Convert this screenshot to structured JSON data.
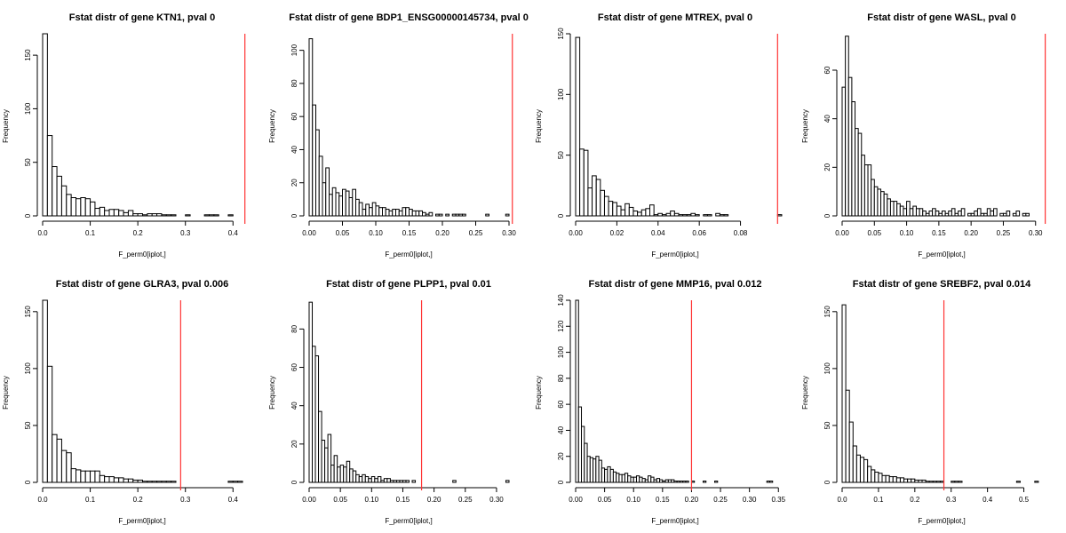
{
  "chart_data": [
    {
      "type": "bar",
      "title": "Fstat distr of gene KTN1, pval 0",
      "xlabel": "F_perm0[iplot,]",
      "ylabel": "Frequency",
      "bin_start": 0,
      "bin_width": 0.01,
      "values": [
        170,
        75,
        46,
        37,
        28,
        20,
        17,
        16,
        17,
        16,
        13,
        7,
        8,
        5,
        6,
        6,
        5,
        3,
        5,
        2,
        2,
        1,
        2,
        2,
        2,
        1,
        1,
        1,
        0,
        0,
        1,
        0,
        0,
        0,
        1,
        1,
        1,
        0,
        0,
        1
      ],
      "xlim": [
        0,
        0.42
      ],
      "ylim": [
        0,
        170
      ],
      "x_ticks": [
        0,
        0.1,
        0.2,
        0.3,
        0.4
      ],
      "x_tick_labels": [
        "0.0",
        "0.1",
        "0.2",
        "0.3",
        "0.4"
      ],
      "y_ticks": [
        0,
        50,
        100,
        150
      ],
      "y_tick_labels": [
        "0",
        "50",
        "100",
        "150"
      ],
      "observed": 0.425,
      "line_color": "#ff3333"
    },
    {
      "type": "bar",
      "title": "Fstat distr of gene BDP1_ENSG00000145734, pval 0",
      "xlabel": "F_perm0[iplot,]",
      "ylabel": "Frequency",
      "bin_start": 0,
      "bin_width": 0.005,
      "values": [
        107,
        67,
        52,
        36,
        20,
        29,
        13,
        17,
        14,
        12,
        16,
        15,
        11,
        16,
        10,
        8,
        4,
        7,
        5,
        8,
        6,
        5,
        5,
        4,
        3,
        4,
        4,
        3,
        5,
        5,
        4,
        3,
        3,
        3,
        2,
        1,
        2,
        0,
        1,
        1,
        0,
        1,
        0,
        1,
        1,
        1,
        1,
        0,
        0,
        0,
        0,
        0,
        0,
        1,
        0,
        0,
        0,
        0,
        0,
        1
      ],
      "xlim": [
        0,
        0.3
      ],
      "ylim": [
        0,
        110
      ],
      "x_ticks": [
        0,
        0.05,
        0.1,
        0.15,
        0.2,
        0.25,
        0.3
      ],
      "x_tick_labels": [
        "0.00",
        "0.05",
        "0.10",
        "0.15",
        "0.20",
        "0.25",
        "0.30"
      ],
      "y_ticks": [
        0,
        20,
        40,
        60,
        80,
        100
      ],
      "y_tick_labels": [
        "0",
        "20",
        "40",
        "60",
        "80",
        "100"
      ],
      "observed": 0.305,
      "line_color": "#ff3333"
    },
    {
      "type": "bar",
      "title": "Fstat distr of gene MTREX, pval 0",
      "xlabel": "F_perm0[iplot,]",
      "ylabel": "Frequency",
      "bin_start": 0,
      "bin_width": 0.002,
      "values": [
        147,
        55,
        54,
        23,
        33,
        30,
        21,
        16,
        12,
        11,
        8,
        5,
        10,
        7,
        4,
        3,
        5,
        6,
        9,
        1,
        2,
        1,
        2,
        4,
        2,
        1,
        1,
        1,
        2,
        1,
        0,
        1,
        1,
        0,
        2,
        1,
        1,
        0,
        0,
        0,
        0,
        0,
        0,
        0,
        0,
        0,
        0,
        0,
        0,
        1
      ],
      "xlim": [
        0,
        0.097
      ],
      "ylim": [
        0,
        150
      ],
      "x_ticks": [
        0,
        0.02,
        0.04,
        0.06,
        0.08
      ],
      "x_tick_labels": [
        "0.00",
        "0.02",
        "0.04",
        "0.06",
        "0.08"
      ],
      "y_ticks": [
        0,
        50,
        100,
        150
      ],
      "y_tick_labels": [
        "0",
        "50",
        "100",
        "150"
      ],
      "observed": 0.098,
      "line_color": "#ff3333"
    },
    {
      "type": "bar",
      "title": "Fstat distr of gene WASL, pval 0",
      "xlabel": "F_perm0[iplot,]",
      "ylabel": "Frequency",
      "bin_start": 0,
      "bin_width": 0.005,
      "values": [
        53,
        74,
        57,
        47,
        36,
        34,
        25,
        21,
        21,
        15,
        12,
        11,
        10,
        9,
        7,
        6,
        6,
        5,
        4,
        3,
        6,
        3,
        4,
        3,
        3,
        2,
        1,
        2,
        3,
        2,
        1,
        2,
        1,
        2,
        3,
        1,
        2,
        3,
        0,
        1,
        1,
        2,
        3,
        1,
        1,
        3,
        2,
        3,
        0,
        1,
        1,
        2,
        0,
        1,
        2,
        0,
        1,
        1
      ],
      "xlim": [
        0,
        0.31
      ],
      "ylim": [
        0,
        75
      ],
      "x_ticks": [
        0,
        0.05,
        0.1,
        0.15,
        0.2,
        0.25,
        0.3
      ],
      "x_tick_labels": [
        "0.00",
        "0.05",
        "0.10",
        "0.15",
        "0.20",
        "0.25",
        "0.30"
      ],
      "y_ticks": [
        0,
        20,
        40,
        60
      ],
      "y_tick_labels": [
        "0",
        "20",
        "40",
        "60"
      ],
      "observed": 0.315,
      "line_color": "#ff3333"
    },
    {
      "type": "bar",
      "title": "Fstat distr of gene GLRA3, pval 0.006",
      "xlabel": "F_perm0[iplot,]",
      "ylabel": "Frequency",
      "bin_start": 0,
      "bin_width": 0.01,
      "values": [
        160,
        102,
        42,
        38,
        28,
        26,
        12,
        11,
        10,
        10,
        10,
        10,
        6,
        5,
        5,
        4,
        4,
        3,
        3,
        2,
        2,
        1,
        1,
        1,
        1,
        1,
        1,
        1,
        0,
        0,
        0,
        0,
        0,
        0,
        0,
        0,
        0,
        0,
        0,
        1,
        1,
        1
      ],
      "xlim": [
        0,
        0.42
      ],
      "ylim": [
        0,
        160
      ],
      "x_ticks": [
        0,
        0.1,
        0.2,
        0.3,
        0.4
      ],
      "x_tick_labels": [
        "0.0",
        "0.1",
        "0.2",
        "0.3",
        "0.4"
      ],
      "y_ticks": [
        0,
        50,
        100,
        150
      ],
      "y_tick_labels": [
        "0",
        "50",
        "100",
        "150"
      ],
      "observed": 0.29,
      "line_color": "#ff3333"
    },
    {
      "type": "bar",
      "title": "Fstat distr of gene PLPP1, pval 0.01",
      "xlabel": "F_perm0[iplot,]",
      "ylabel": "Frequency",
      "bin_start": 0,
      "bin_width": 0.005,
      "values": [
        94,
        71,
        66,
        37,
        22,
        18,
        25,
        9,
        14,
        8,
        9,
        8,
        11,
        7,
        6,
        4,
        3,
        4,
        3,
        2,
        3,
        2,
        3,
        1,
        2,
        2,
        1,
        1,
        1,
        1,
        1,
        1,
        0,
        1,
        0,
        0,
        0,
        0,
        0,
        0,
        0,
        0,
        0,
        0,
        0,
        0,
        1,
        0,
        0,
        0,
        0,
        0,
        0,
        0,
        0,
        0,
        0,
        0,
        0,
        0,
        0,
        0,
        0,
        1
      ],
      "xlim": [
        0,
        0.32
      ],
      "ylim": [
        0,
        95
      ],
      "x_ticks": [
        0,
        0.05,
        0.1,
        0.15,
        0.2,
        0.25,
        0.3
      ],
      "x_tick_labels": [
        "0.00",
        "0.05",
        "0.10",
        "0.15",
        "0.20",
        "0.25",
        "0.30"
      ],
      "y_ticks": [
        0,
        20,
        40,
        60,
        80
      ],
      "y_tick_labels": [
        "0",
        "20",
        "40",
        "60",
        "80"
      ],
      "observed": 0.18,
      "line_color": "#ff3333"
    },
    {
      "type": "bar",
      "title": "Fstat distr of gene MMP16, pval 0.012",
      "xlabel": "F_perm0[iplot,]",
      "ylabel": "Frequency",
      "bin_start": 0,
      "bin_width": 0.005,
      "values": [
        140,
        58,
        43,
        30,
        20,
        19,
        18,
        20,
        17,
        11,
        10,
        12,
        10,
        8,
        7,
        6,
        6,
        7,
        5,
        4,
        4,
        5,
        4,
        3,
        2,
        5,
        4,
        2,
        3,
        2,
        1,
        2,
        2,
        2,
        1,
        1,
        1,
        1,
        1,
        0,
        1,
        0,
        0,
        0,
        1,
        0,
        0,
        0,
        1,
        0,
        0,
        0,
        0,
        0,
        0,
        0,
        0,
        0,
        0,
        0,
        0,
        0,
        0,
        0,
        0,
        0,
        1,
        1
      ],
      "xlim": [
        0,
        0.345
      ],
      "ylim": [
        0,
        140
      ],
      "x_ticks": [
        0,
        0.05,
        0.1,
        0.15,
        0.2,
        0.25,
        0.3,
        0.35
      ],
      "x_tick_labels": [
        "0.00",
        "0.05",
        "0.10",
        "0.15",
        "0.20",
        "0.25",
        "0.30",
        "0.35"
      ],
      "y_ticks": [
        0,
        20,
        40,
        60,
        80,
        100,
        120,
        140
      ],
      "y_tick_labels": [
        "0",
        "20",
        "40",
        "60",
        "80",
        "100",
        "120",
        "140"
      ],
      "observed": 0.2,
      "line_color": "#ff3333"
    },
    {
      "type": "bar",
      "title": "Fstat distr of gene SREBF2, pval 0.014",
      "xlabel": "F_perm0[iplot,]",
      "ylabel": "Frequency",
      "bin_start": 0,
      "bin_width": 0.01,
      "values": [
        156,
        81,
        53,
        32,
        24,
        22,
        20,
        14,
        11,
        9,
        8,
        6,
        6,
        5,
        5,
        4,
        4,
        3,
        3,
        3,
        2,
        2,
        2,
        1,
        1,
        1,
        1,
        1,
        0,
        0,
        1,
        1,
        1,
        0,
        0,
        0,
        0,
        0,
        0,
        0,
        0,
        0,
        0,
        0,
        0,
        0,
        0,
        0,
        1,
        0,
        0,
        0,
        0,
        1
      ],
      "xlim": [
        0,
        0.55
      ],
      "ylim": [
        0,
        160
      ],
      "x_ticks": [
        0,
        0.1,
        0.2,
        0.3,
        0.4,
        0.5
      ],
      "x_tick_labels": [
        "0.0",
        "0.1",
        "0.2",
        "0.3",
        "0.4",
        "0.5"
      ],
      "y_ticks": [
        0,
        50,
        100,
        150
      ],
      "y_tick_labels": [
        "0",
        "50",
        "100",
        "150"
      ],
      "observed": 0.28,
      "line_color": "#ff3333"
    }
  ]
}
